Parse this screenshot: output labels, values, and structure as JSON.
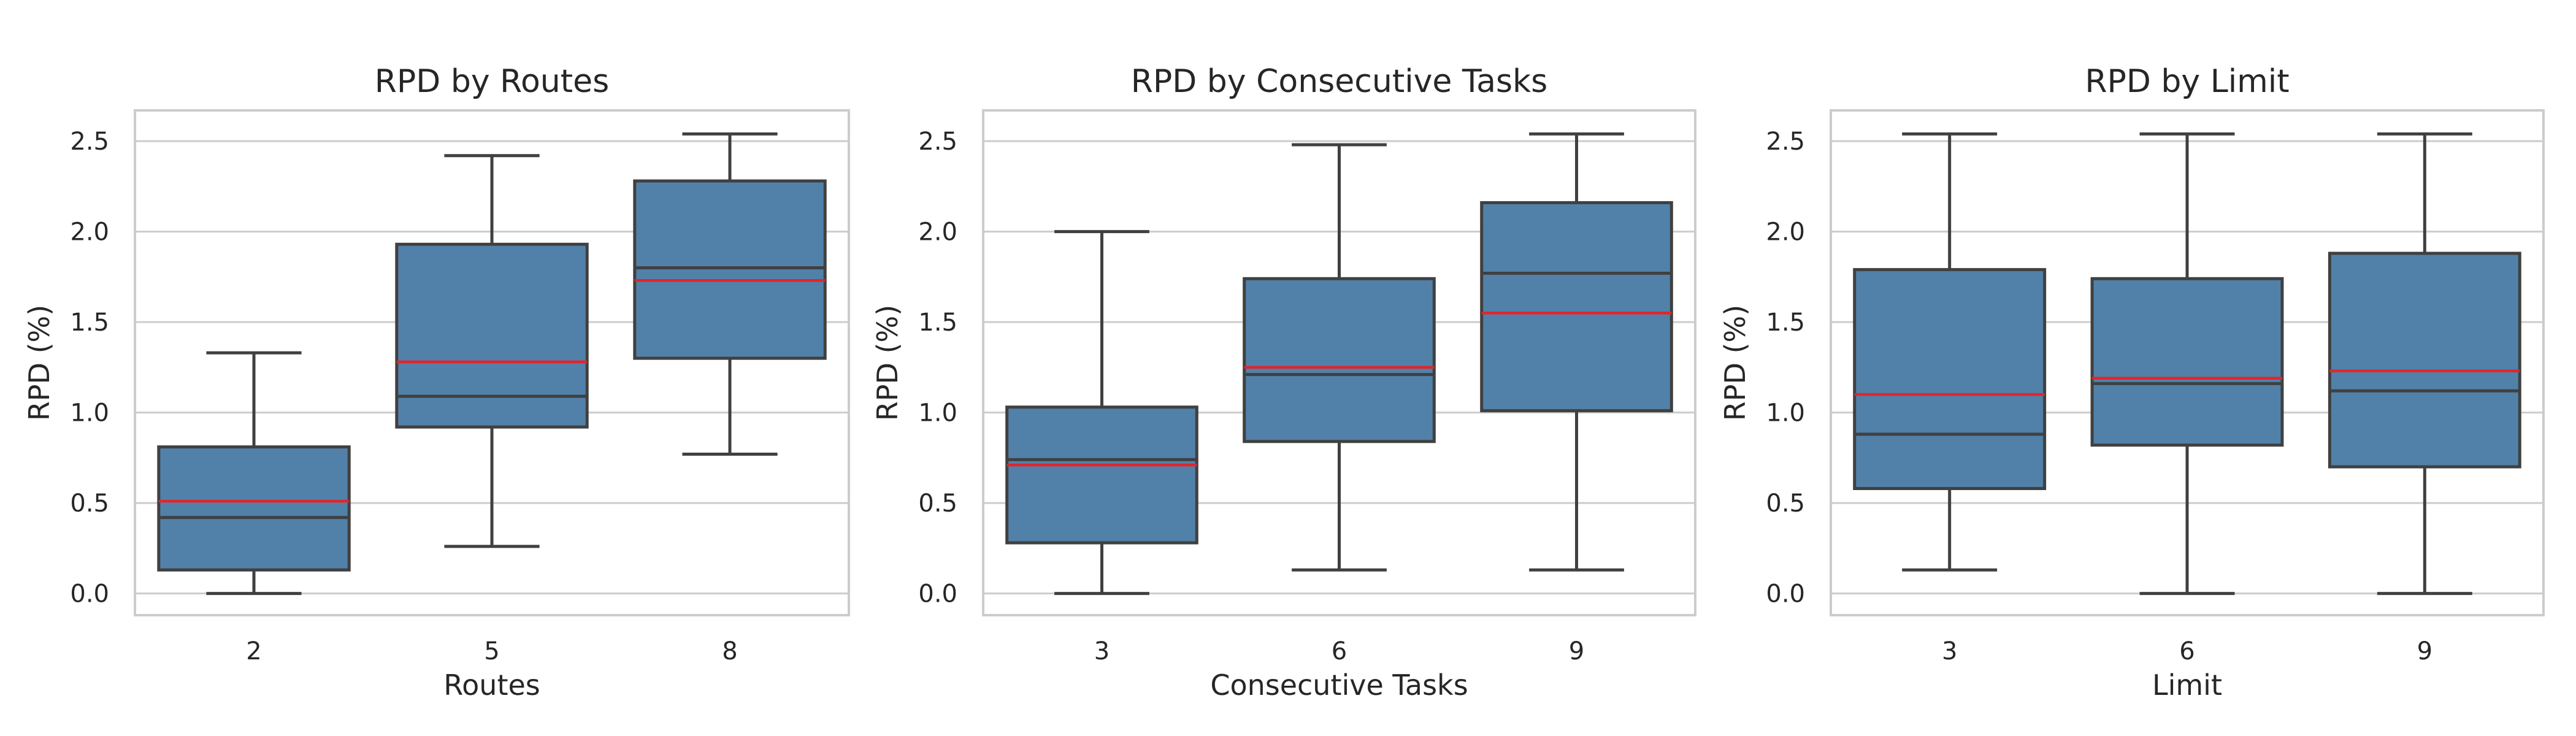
{
  "chart_data": [
    {
      "type": "box",
      "title": "RPD by Routes",
      "xlabel": "Routes",
      "ylabel": "RPD (%)",
      "ylim": [
        -0.12,
        2.67
      ],
      "yticks": [
        "0.0",
        "0.5",
        "1.0",
        "1.5",
        "2.0",
        "2.5"
      ],
      "grid": "horizontal",
      "box_color": "#5181a9",
      "mean_color": "#e3242b",
      "categories": [
        "2",
        "5",
        "8"
      ],
      "boxes": [
        {
          "whisker_low": 0.0,
          "q1": 0.13,
          "median": 0.42,
          "mean": 0.51,
          "q3": 0.81,
          "whisker_high": 1.33
        },
        {
          "whisker_low": 0.26,
          "q1": 0.92,
          "median": 1.09,
          "mean": 1.28,
          "q3": 1.93,
          "whisker_high": 2.42
        },
        {
          "whisker_low": 0.77,
          "q1": 1.3,
          "median": 1.8,
          "mean": 1.73,
          "q3": 2.28,
          "whisker_high": 2.54
        }
      ]
    },
    {
      "type": "box",
      "title": "RPD by Consecutive Tasks",
      "xlabel": "Consecutive Tasks",
      "ylabel": "RPD (%)",
      "ylim": [
        -0.12,
        2.67
      ],
      "yticks": [
        "0.0",
        "0.5",
        "1.0",
        "1.5",
        "2.0",
        "2.5"
      ],
      "grid": "horizontal",
      "box_color": "#5181a9",
      "mean_color": "#e3242b",
      "categories": [
        "3",
        "6",
        "9"
      ],
      "boxes": [
        {
          "whisker_low": 0.0,
          "q1": 0.28,
          "median": 0.74,
          "mean": 0.71,
          "q3": 1.03,
          "whisker_high": 2.0
        },
        {
          "whisker_low": 0.13,
          "q1": 0.84,
          "median": 1.21,
          "mean": 1.25,
          "q3": 1.74,
          "whisker_high": 2.48
        },
        {
          "whisker_low": 0.13,
          "q1": 1.01,
          "median": 1.77,
          "mean": 1.55,
          "q3": 2.16,
          "whisker_high": 2.54
        }
      ]
    },
    {
      "type": "box",
      "title": "RPD by Limit",
      "xlabel": "Limit",
      "ylabel": "RPD (%)",
      "ylim": [
        -0.12,
        2.67
      ],
      "yticks": [
        "0.0",
        "0.5",
        "1.0",
        "1.5",
        "2.0",
        "2.5"
      ],
      "grid": "horizontal",
      "box_color": "#5181a9",
      "mean_color": "#e3242b",
      "categories": [
        "3",
        "6",
        "9"
      ],
      "boxes": [
        {
          "whisker_low": 0.13,
          "q1": 0.58,
          "median": 0.88,
          "mean": 1.1,
          "q3": 1.79,
          "whisker_high": 2.54
        },
        {
          "whisker_low": 0.0,
          "q1": 0.82,
          "median": 1.16,
          "mean": 1.19,
          "q3": 1.74,
          "whisker_high": 2.54
        },
        {
          "whisker_low": 0.0,
          "q1": 0.7,
          "median": 1.12,
          "mean": 1.23,
          "q3": 1.88,
          "whisker_high": 2.54
        }
      ]
    }
  ]
}
